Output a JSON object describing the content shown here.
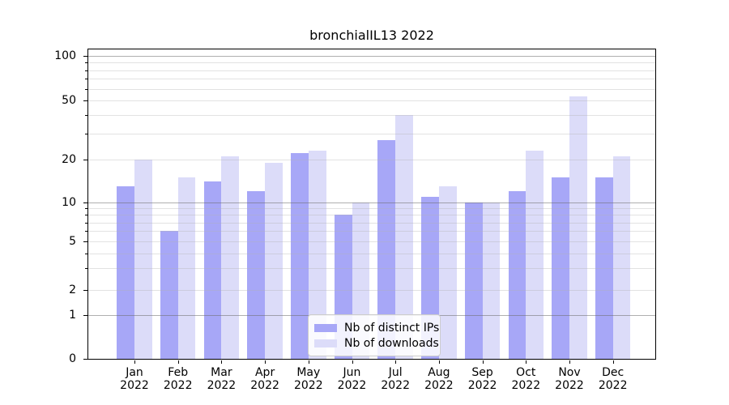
{
  "title": "bronchialIL13 2022",
  "chart_data": {
    "type": "bar",
    "title": "bronchialIL13 2022",
    "categories": [
      "Jan 2022",
      "Feb 2022",
      "Mar 2022",
      "Apr 2022",
      "May 2022",
      "Jun 2022",
      "Jul 2022",
      "Aug 2022",
      "Sep 2022",
      "Oct 2022",
      "Nov 2022",
      "Dec 2022"
    ],
    "category_lines": [
      [
        "Jan",
        "2022"
      ],
      [
        "Feb",
        "2022"
      ],
      [
        "Mar",
        "2022"
      ],
      [
        "Apr",
        "2022"
      ],
      [
        "May",
        "2022"
      ],
      [
        "Jun",
        "2022"
      ],
      [
        "Jul",
        "2022"
      ],
      [
        "Aug",
        "2022"
      ],
      [
        "Sep",
        "2022"
      ],
      [
        "Oct",
        "2022"
      ],
      [
        "Nov",
        "2022"
      ],
      [
        "Dec",
        "2022"
      ]
    ],
    "series": [
      {
        "name": "Nb of distinct IPs",
        "color": "#a7a7f7",
        "values": [
          13,
          6,
          14,
          12,
          22,
          8,
          27,
          11,
          10,
          12,
          15,
          15
        ]
      },
      {
        "name": "Nb of downloads",
        "color": "#dcdcf9",
        "values": [
          20,
          15,
          21,
          19,
          23,
          10,
          40,
          13,
          10,
          23,
          53,
          21
        ]
      }
    ],
    "xlabel": "",
    "ylabel": "",
    "yscale": "symlog",
    "ylim": [
      0,
      112
    ],
    "ytick_values": [
      0,
      1,
      2,
      5,
      10,
      20,
      50,
      100
    ],
    "ytick_labels": [
      "0",
      "1",
      "2",
      "5",
      "10",
      "20",
      "50",
      "100"
    ],
    "grid": true,
    "grid_major_values": [
      1,
      10,
      100
    ],
    "grid_minor_values": [
      2,
      3,
      4,
      5,
      6,
      7,
      8,
      9,
      20,
      30,
      40,
      50,
      60,
      70,
      80,
      90
    ],
    "legend_position": "lower center"
  },
  "legend": {
    "items": [
      {
        "label": "Nb of distinct IPs",
        "swatch": "#a7a7f7"
      },
      {
        "label": "Nb of downloads",
        "swatch": "#dcdcf9"
      }
    ]
  },
  "colors": {
    "bar_distinct_ips": "#a7a7f7",
    "bar_downloads": "#dcdcf9",
    "grid_major": "#6e6e6e",
    "grid_minor": "#b4b4b4",
    "axis": "#000000",
    "legend_border": "#cccccc",
    "background": "#ffffff"
  }
}
